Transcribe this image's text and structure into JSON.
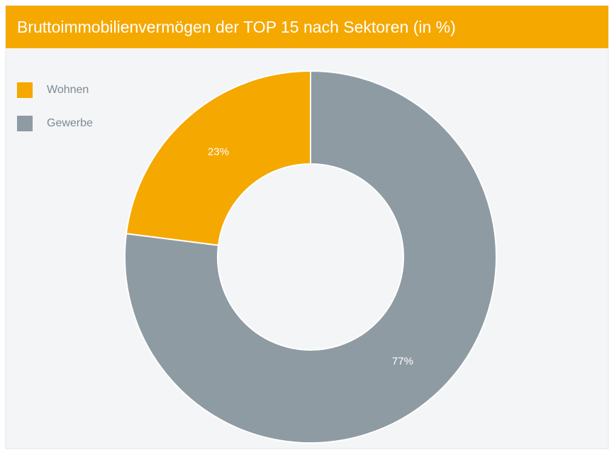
{
  "chart_data": {
    "type": "donut",
    "title": "Bruttoimmobilienvermögen der TOP 15 nach Sektoren (in %)",
    "categories": [
      "Wohnen",
      "Gewerbe"
    ],
    "values": [
      23,
      77
    ],
    "value_labels": [
      "23%",
      "77%"
    ],
    "colors": [
      "#f5a800",
      "#8f9ba3"
    ]
  }
}
